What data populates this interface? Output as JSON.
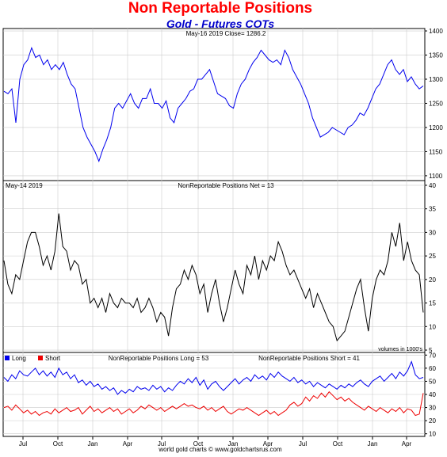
{
  "header": {
    "title": "Non Reportable Positions",
    "subtitle": "Gold - Futures COTs"
  },
  "footer": "world gold charts © www.goldchartsrus.com",
  "colors": {
    "price": "#0000ee",
    "net": "#000000",
    "long": "#0000ee",
    "short": "#ee0000",
    "grid": "#cccccc"
  },
  "chart_data": [
    {
      "type": "line",
      "name": "gold-price",
      "header_text": "May-16  2019   Close= 1286.2",
      "x_ticks": [
        "Jul",
        "Oct",
        "Jan",
        "Apr",
        "Jul",
        "Oct",
        "Jan",
        "Apr",
        "Jul",
        "Oct",
        "Jan",
        "Apr"
      ],
      "y_ticks": [
        1100,
        1150,
        1200,
        1250,
        1300,
        1350,
        1400
      ],
      "ylim": [
        1090,
        1405
      ],
      "grid": true,
      "series": [
        {
          "values": [
            1275,
            1270,
            1280,
            1210,
            1300,
            1330,
            1340,
            1365,
            1345,
            1350,
            1330,
            1340,
            1320,
            1330,
            1320,
            1335,
            1310,
            1290,
            1280,
            1240,
            1200,
            1180,
            1165,
            1150,
            1130,
            1155,
            1175,
            1200,
            1240,
            1250,
            1240,
            1255,
            1270,
            1250,
            1240,
            1260,
            1260,
            1280,
            1250,
            1250,
            1240,
            1255,
            1220,
            1210,
            1240,
            1250,
            1260,
            1275,
            1280,
            1300,
            1300,
            1310,
            1320,
            1295,
            1270,
            1265,
            1260,
            1245,
            1240,
            1270,
            1290,
            1300,
            1320,
            1335,
            1345,
            1360,
            1350,
            1340,
            1335,
            1340,
            1330,
            1360,
            1345,
            1320,
            1305,
            1290,
            1270,
            1250,
            1220,
            1200,
            1180,
            1185,
            1190,
            1200,
            1195,
            1190,
            1185,
            1200,
            1205,
            1215,
            1230,
            1225,
            1240,
            1260,
            1280,
            1290,
            1310,
            1330,
            1340,
            1320,
            1310,
            1320,
            1295,
            1305,
            1290,
            1280,
            1286
          ]
        }
      ]
    },
    {
      "type": "line",
      "name": "net-positions",
      "header_left": "May-14  2019",
      "header_center": "NonReportable Positions Net = 13",
      "note": "volumes in 1000's",
      "y_ticks": [
        5,
        10,
        15,
        20,
        25,
        30,
        35,
        40
      ],
      "ylim": [
        4.5,
        41
      ],
      "grid": true,
      "series": [
        {
          "values": [
            24,
            19,
            17,
            21,
            20,
            24,
            28,
            30,
            30,
            27,
            23,
            25,
            22,
            26,
            34,
            27,
            26,
            22,
            24,
            23,
            19,
            20,
            15,
            16,
            14,
            16,
            13,
            17,
            15,
            14,
            16,
            15,
            15,
            14,
            16,
            13,
            14,
            16,
            14,
            11,
            13,
            12,
            8,
            14,
            18,
            19,
            22,
            20,
            23,
            21,
            17,
            19,
            13,
            17,
            20,
            15,
            11,
            14,
            18,
            22,
            19,
            17,
            23,
            21,
            25,
            20,
            24,
            22,
            25,
            24,
            28,
            26,
            23,
            21,
            22,
            20,
            18,
            16,
            18,
            14,
            17,
            15,
            13,
            11,
            10,
            7,
            8,
            9,
            12,
            15,
            18,
            20,
            14,
            9,
            16,
            20,
            22,
            21,
            24,
            30,
            27,
            32,
            24,
            28,
            24,
            22,
            21,
            13
          ]
        }
      ]
    },
    {
      "type": "line",
      "name": "long-short-positions",
      "y_ticks": [
        10,
        20,
        30,
        40,
        50,
        60,
        70
      ],
      "ylim": [
        8,
        72
      ],
      "grid": true,
      "legend": [
        {
          "name": "Long",
          "color": "#0000ee"
        },
        {
          "name": "Short",
          "color": "#ee0000"
        }
      ],
      "header_long": "NonReportable Positions Long = 53",
      "header_short": "NonReportable Positions Short = 41",
      "series": [
        {
          "name": "Long",
          "values": [
            53,
            50,
            55,
            52,
            58,
            55,
            54,
            57,
            60,
            55,
            58,
            54,
            57,
            53,
            60,
            55,
            57,
            52,
            55,
            49,
            51,
            47,
            50,
            46,
            48,
            44,
            46,
            43,
            45,
            40,
            43,
            41,
            44,
            42,
            46,
            44,
            45,
            43,
            47,
            44,
            46,
            42,
            45,
            43,
            47,
            50,
            48,
            52,
            49,
            53,
            47,
            51,
            44,
            48,
            50,
            46,
            43,
            46,
            49,
            52,
            48,
            51,
            53,
            50,
            55,
            52,
            54,
            51,
            56,
            53,
            57,
            54,
            52,
            50,
            53,
            49,
            51,
            48,
            50,
            46,
            49,
            47,
            45,
            48,
            46,
            44,
            47,
            45,
            48,
            46,
            49,
            51,
            48,
            46,
            50,
            52,
            54,
            50,
            53,
            56,
            52,
            57,
            54,
            58,
            65,
            55,
            52,
            53
          ]
        },
        {
          "name": "Short",
          "values": [
            30,
            31,
            28,
            32,
            29,
            26,
            28,
            25,
            27,
            24,
            26,
            27,
            25,
            29,
            26,
            28,
            30,
            27,
            28,
            30,
            25,
            28,
            31,
            27,
            29,
            26,
            28,
            30,
            27,
            29,
            25,
            27,
            29,
            26,
            28,
            31,
            29,
            32,
            30,
            28,
            30,
            27,
            29,
            31,
            29,
            31,
            33,
            31,
            32,
            30,
            29,
            31,
            28,
            30,
            27,
            29,
            31,
            27,
            25,
            27,
            29,
            28,
            30,
            28,
            26,
            24,
            26,
            28,
            25,
            27,
            24,
            26,
            28,
            32,
            34,
            31,
            33,
            38,
            35,
            39,
            37,
            41,
            38,
            42,
            39,
            36,
            38,
            35,
            37,
            34,
            32,
            30,
            28,
            31,
            29,
            27,
            30,
            28,
            26,
            29,
            27,
            30,
            26,
            29,
            28,
            24,
            25,
            41
          ]
        }
      ]
    }
  ]
}
